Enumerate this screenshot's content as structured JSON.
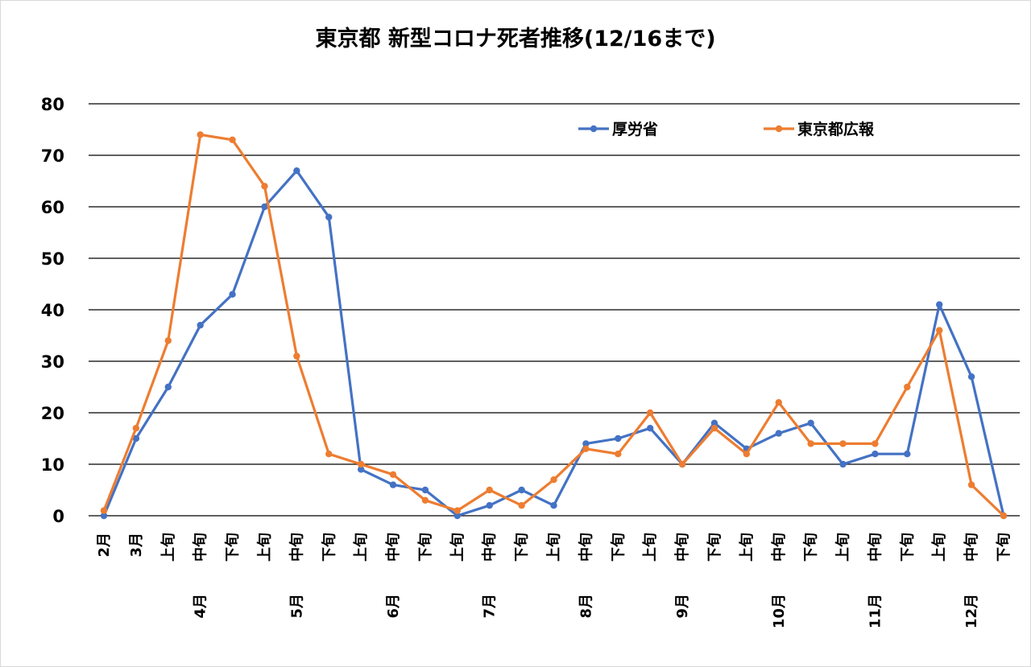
{
  "chart_data": {
    "type": "line",
    "title": "東京都 新型コロナ死者推移(12/16まで)",
    "ylim": [
      0,
      80
    ],
    "yticks": [
      "0",
      "10",
      "20",
      "30",
      "40",
      "50",
      "60",
      "70",
      "80"
    ],
    "grid": true,
    "legend_position": "top-right",
    "categories": [
      "2月",
      "3月",
      "上旬",
      "中旬",
      "下旬",
      "上旬",
      "中旬",
      "下旬",
      "上旬",
      "中旬",
      "下旬",
      "上旬",
      "中旬",
      "下旬",
      "上旬",
      "中旬",
      "下旬",
      "上旬",
      "中旬",
      "下旬",
      "上旬",
      "中旬",
      "下旬",
      "上旬",
      "中旬",
      "下旬",
      "上旬",
      "中旬",
      "下旬"
    ],
    "month_labels": [
      {
        "label": "4月",
        "category_index": 3
      },
      {
        "label": "5月",
        "category_index": 6
      },
      {
        "label": "6月",
        "category_index": 9
      },
      {
        "label": "7月",
        "category_index": 12
      },
      {
        "label": "8月",
        "category_index": 15
      },
      {
        "label": "9月",
        "category_index": 18
      },
      {
        "label": "10月",
        "category_index": 21
      },
      {
        "label": "11月",
        "category_index": 24
      },
      {
        "label": "12月",
        "category_index": 27
      }
    ],
    "series": [
      {
        "name": "厚労省",
        "color": "#4472C4",
        "values": [
          0,
          15,
          25,
          37,
          43,
          60,
          67,
          58,
          9,
          6,
          5,
          0,
          2,
          5,
          2,
          14,
          15,
          17,
          10,
          18,
          13,
          16,
          18,
          10,
          12,
          12,
          41,
          27,
          0
        ]
      },
      {
        "name": "東京都広報",
        "color": "#ED7D31",
        "values": [
          1,
          17,
          34,
          74,
          73,
          64,
          31,
          12,
          10,
          8,
          3,
          1,
          5,
          2,
          7,
          13,
          12,
          20,
          10,
          17,
          12,
          22,
          14,
          14,
          14,
          25,
          36,
          6,
          0
        ]
      }
    ]
  }
}
